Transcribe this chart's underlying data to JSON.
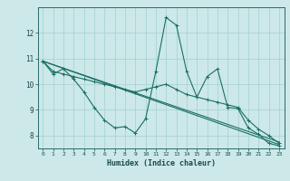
{
  "xlabel": "Humidex (Indice chaleur)",
  "bg_color": "#cce8e8",
  "grid_color": "#aad4d4",
  "line_color": "#1a6e64",
  "xlim": [
    -0.5,
    23.5
  ],
  "ylim": [
    7.5,
    13.0
  ],
  "xticks": [
    0,
    1,
    2,
    3,
    4,
    5,
    6,
    7,
    8,
    9,
    10,
    11,
    12,
    13,
    14,
    15,
    16,
    17,
    18,
    19,
    20,
    21,
    22,
    23
  ],
  "yticks": [
    8,
    9,
    10,
    11,
    12
  ],
  "series": [
    {
      "x": [
        0,
        1,
        2,
        3,
        4,
        5,
        6,
        7,
        8,
        9,
        10,
        11,
        12,
        13,
        14,
        15,
        16,
        17,
        18,
        19,
        20,
        21,
        22,
        23
      ],
      "y": [
        10.9,
        10.4,
        10.6,
        10.2,
        9.7,
        9.1,
        8.6,
        8.3,
        8.35,
        8.1,
        8.65,
        10.5,
        12.6,
        12.3,
        10.5,
        9.5,
        10.3,
        10.6,
        9.1,
        9.05,
        8.3,
        8.05,
        7.7,
        7.6
      ]
    },
    {
      "x": [
        0,
        1,
        2,
        3,
        4,
        5,
        6,
        7,
        8,
        9,
        10,
        11,
        12,
        13,
        14,
        15,
        16,
        17,
        18,
        19,
        20,
        21,
        22,
        23
      ],
      "y": [
        10.9,
        10.5,
        10.4,
        10.3,
        10.2,
        10.1,
        10.0,
        9.9,
        9.8,
        9.7,
        9.8,
        9.9,
        10.0,
        9.8,
        9.6,
        9.5,
        9.4,
        9.3,
        9.2,
        9.1,
        8.6,
        8.25,
        8.0,
        7.7
      ]
    },
    {
      "x": [
        0,
        23
      ],
      "y": [
        10.9,
        7.65
      ]
    },
    {
      "x": [
        0,
        23
      ],
      "y": [
        10.9,
        7.75
      ]
    }
  ]
}
